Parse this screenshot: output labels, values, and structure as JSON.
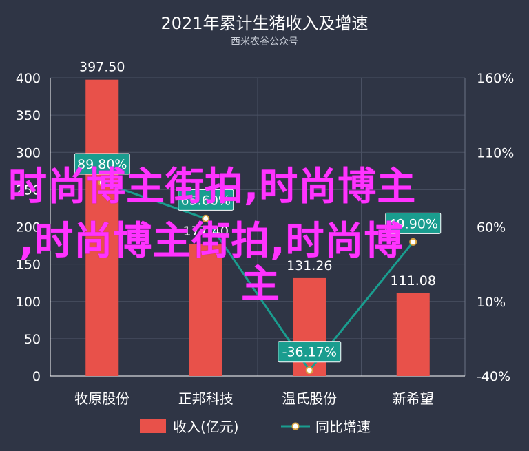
{
  "chart_data": {
    "type": "bar",
    "title": "2021年累计生猪收入及增速",
    "subtitle": "西米农谷公众号",
    "categories": [
      "牧原股份",
      "正邦科技",
      "温氏股份",
      "新希望"
    ],
    "series": [
      {
        "name": "收入(亿元)",
        "type": "bar",
        "axis": "left",
        "values": [
          397.5,
          177.4,
          131.26,
          111.08
        ],
        "labels": [
          "397.50",
          "177.40",
          "131.26",
          "111.08"
        ]
      },
      {
        "name": "同比增速",
        "type": "line",
        "axis": "right",
        "values": [
          89.8,
          65.6,
          -36.17,
          49.9
        ],
        "labels": [
          "89.80%",
          "65.60%",
          "-36.17%",
          "49.90%"
        ]
      }
    ],
    "yaxis_left": {
      "range": [
        0,
        400
      ],
      "ticks": [
        "0",
        "50",
        "100",
        "150",
        "200",
        "250",
        "300",
        "350",
        "400"
      ]
    },
    "yaxis_right": {
      "range": [
        -40,
        160
      ],
      "ticks": [
        "-40%",
        "10%",
        "60%",
        "110%",
        "160%"
      ]
    },
    "grid": true,
    "legend": "bottom",
    "colors": {
      "bar": "#e8514a",
      "line": "#1a9d8f",
      "label_bg": "#1a9d8f",
      "background": "#2f3545"
    }
  },
  "watermark": [
    "时尚博主街拍,时尚博主",
    ",时尚博主街拍,时尚博",
    "主"
  ]
}
